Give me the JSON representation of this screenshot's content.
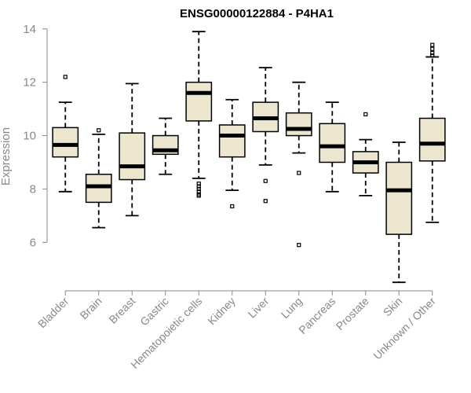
{
  "chart_data": {
    "type": "boxplot",
    "title": "ENSG00000122884 - P4HA1",
    "xlabel": "",
    "ylabel": "Expression",
    "ylim": [
      4.3,
      14.2
    ],
    "yticks": [
      6,
      8,
      10,
      12,
      14
    ],
    "colors": {
      "box_fill": "#ede6cf",
      "stroke": "#000000",
      "axis": "#888888"
    },
    "categories": [
      "Bladder",
      "Brain",
      "Breast",
      "Gastric",
      "Hematopoietic cells",
      "Kidney",
      "Liver",
      "Lung",
      "Pancreas",
      "Prostate",
      "Skin",
      "Unknown / Other"
    ],
    "boxes": [
      {
        "name": "Bladder",
        "whisker_low": 7.9,
        "q1": 9.2,
        "median": 9.65,
        "q3": 10.3,
        "whisker_high": 11.25,
        "outliers": [
          12.2
        ]
      },
      {
        "name": "Brain",
        "whisker_low": 6.55,
        "q1": 7.5,
        "median": 8.1,
        "q3": 8.55,
        "whisker_high": 10.05,
        "outliers": [
          10.2
        ]
      },
      {
        "name": "Breast",
        "whisker_low": 7.0,
        "q1": 8.35,
        "median": 8.85,
        "q3": 10.1,
        "whisker_high": 11.95,
        "outliers": []
      },
      {
        "name": "Gastric",
        "whisker_low": 8.55,
        "q1": 9.3,
        "median": 9.45,
        "q3": 10.0,
        "whisker_high": 10.65,
        "outliers": []
      },
      {
        "name": "Hematopoietic cells",
        "whisker_low": 8.4,
        "q1": 10.55,
        "median": 11.6,
        "q3": 12.0,
        "whisker_high": 13.9,
        "outliers": [
          8.2,
          8.1,
          8.0,
          7.9,
          7.8,
          7.75
        ]
      },
      {
        "name": "Kidney",
        "whisker_low": 7.95,
        "q1": 9.2,
        "median": 10.0,
        "q3": 10.4,
        "whisker_high": 11.35,
        "outliers": [
          7.35
        ]
      },
      {
        "name": "Liver",
        "whisker_low": 8.9,
        "q1": 10.15,
        "median": 10.65,
        "q3": 11.25,
        "whisker_high": 12.55,
        "outliers": [
          8.3,
          7.55
        ]
      },
      {
        "name": "Lung",
        "whisker_low": 9.35,
        "q1": 10.0,
        "median": 10.25,
        "q3": 10.85,
        "whisker_high": 12.0,
        "outliers": [
          8.6,
          5.9
        ]
      },
      {
        "name": "Pancreas",
        "whisker_low": 7.9,
        "q1": 9.0,
        "median": 9.6,
        "q3": 10.45,
        "whisker_high": 11.25,
        "outliers": []
      },
      {
        "name": "Prostate",
        "whisker_low": 7.75,
        "q1": 8.6,
        "median": 9.0,
        "q3": 9.4,
        "whisker_high": 9.85,
        "outliers": [
          10.8
        ]
      },
      {
        "name": "Skin",
        "whisker_low": 4.5,
        "q1": 6.3,
        "median": 7.95,
        "q3": 9.0,
        "whisker_high": 9.75,
        "outliers": []
      },
      {
        "name": "Unknown / Other",
        "whisker_low": 6.75,
        "q1": 9.05,
        "median": 9.7,
        "q3": 10.65,
        "whisker_high": 12.95,
        "outliers": [
          13.0,
          13.1,
          13.25,
          13.4
        ]
      }
    ]
  }
}
